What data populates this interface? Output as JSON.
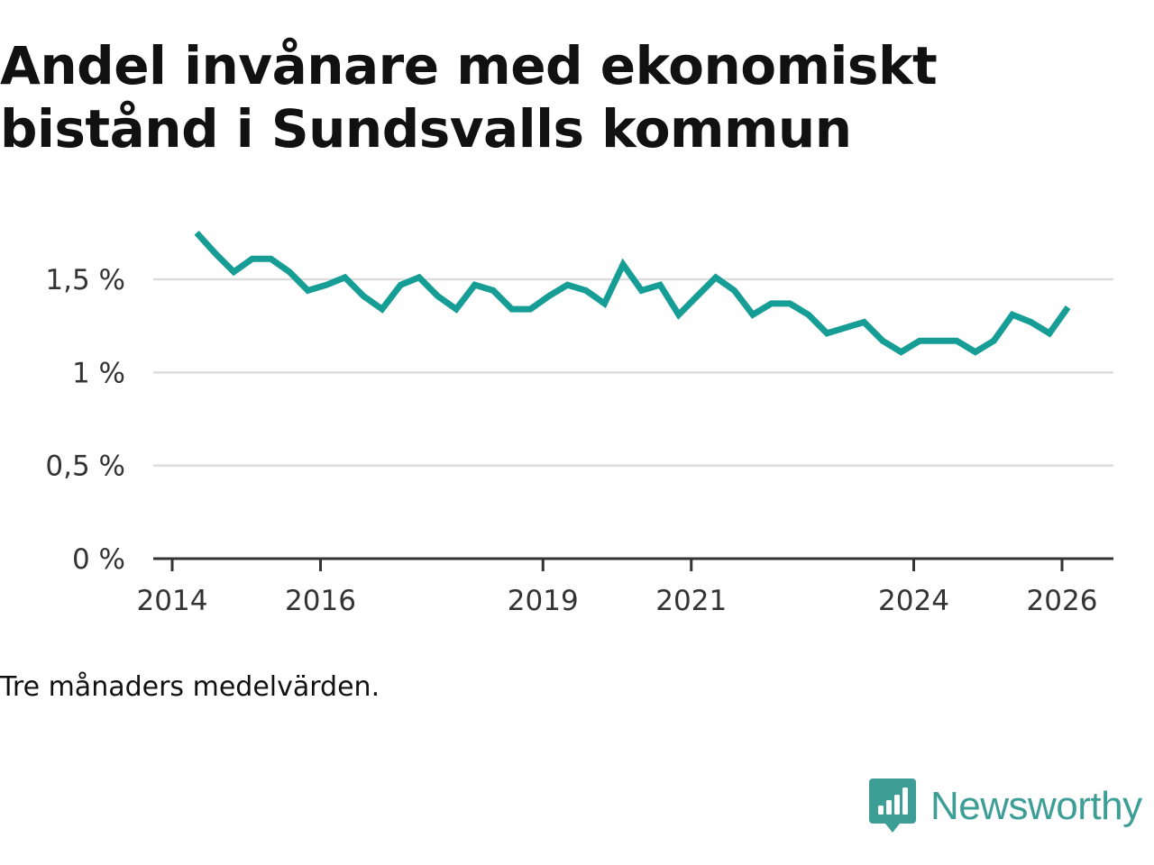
{
  "chart_data": {
    "type": "line",
    "title": "Andel invånare med ekonomiskt bistånd i Sundsvalls kommun",
    "xlabel": "",
    "ylabel": "",
    "ylim": [
      0,
      1.8
    ],
    "xlim": [
      2014,
      2026.5
    ],
    "grid": true,
    "yticks": [
      {
        "value": 0,
        "label": "0 %"
      },
      {
        "value": 0.5,
        "label": "0,5 %"
      },
      {
        "value": 1,
        "label": "1 %"
      },
      {
        "value": 1.5,
        "label": "1,5 %"
      }
    ],
    "xticks": [
      {
        "value": 2014,
        "label": "2014"
      },
      {
        "value": 2016,
        "label": "2016"
      },
      {
        "value": 2019,
        "label": "2019"
      },
      {
        "value": 2021,
        "label": "2021"
      },
      {
        "value": 2024,
        "label": "2024"
      },
      {
        "value": 2026,
        "label": "2026"
      }
    ],
    "series": [
      {
        "name": "Andel invånare med ekonomiskt bistånd",
        "color": "#169e96",
        "x": [
          2014.33,
          2014.58,
          2014.83,
          2015.08,
          2015.33,
          2015.58,
          2015.83,
          2016.08,
          2016.33,
          2016.58,
          2016.83,
          2017.08,
          2017.33,
          2017.58,
          2017.83,
          2018.08,
          2018.33,
          2018.58,
          2018.83,
          2019.08,
          2019.33,
          2019.58,
          2019.83,
          2020.08,
          2020.33,
          2020.58,
          2020.83,
          2021.08,
          2021.33,
          2021.58,
          2021.83,
          2022.08,
          2022.33,
          2022.58,
          2022.83,
          2023.08,
          2023.33,
          2023.58,
          2023.83,
          2024.08,
          2024.33,
          2024.58,
          2024.83,
          2025.08,
          2025.33,
          2025.58,
          2025.83,
          2026.08
        ],
        "values": [
          1.75,
          1.64,
          1.54,
          1.61,
          1.61,
          1.54,
          1.44,
          1.47,
          1.51,
          1.41,
          1.34,
          1.47,
          1.51,
          1.41,
          1.34,
          1.47,
          1.44,
          1.34,
          1.34,
          1.41,
          1.47,
          1.44,
          1.37,
          1.58,
          1.44,
          1.47,
          1.31,
          1.41,
          1.51,
          1.44,
          1.31,
          1.37,
          1.37,
          1.31,
          1.21,
          1.24,
          1.27,
          1.17,
          1.11,
          1.17,
          1.17,
          1.17,
          1.11,
          1.17,
          1.31,
          1.27,
          1.21,
          1.35
        ]
      }
    ]
  },
  "note": "Tre månaders medelvärden.",
  "brand": {
    "name": "Newsworthy",
    "icon": "newsworthy-logo-icon",
    "color": "#3d9e96"
  }
}
